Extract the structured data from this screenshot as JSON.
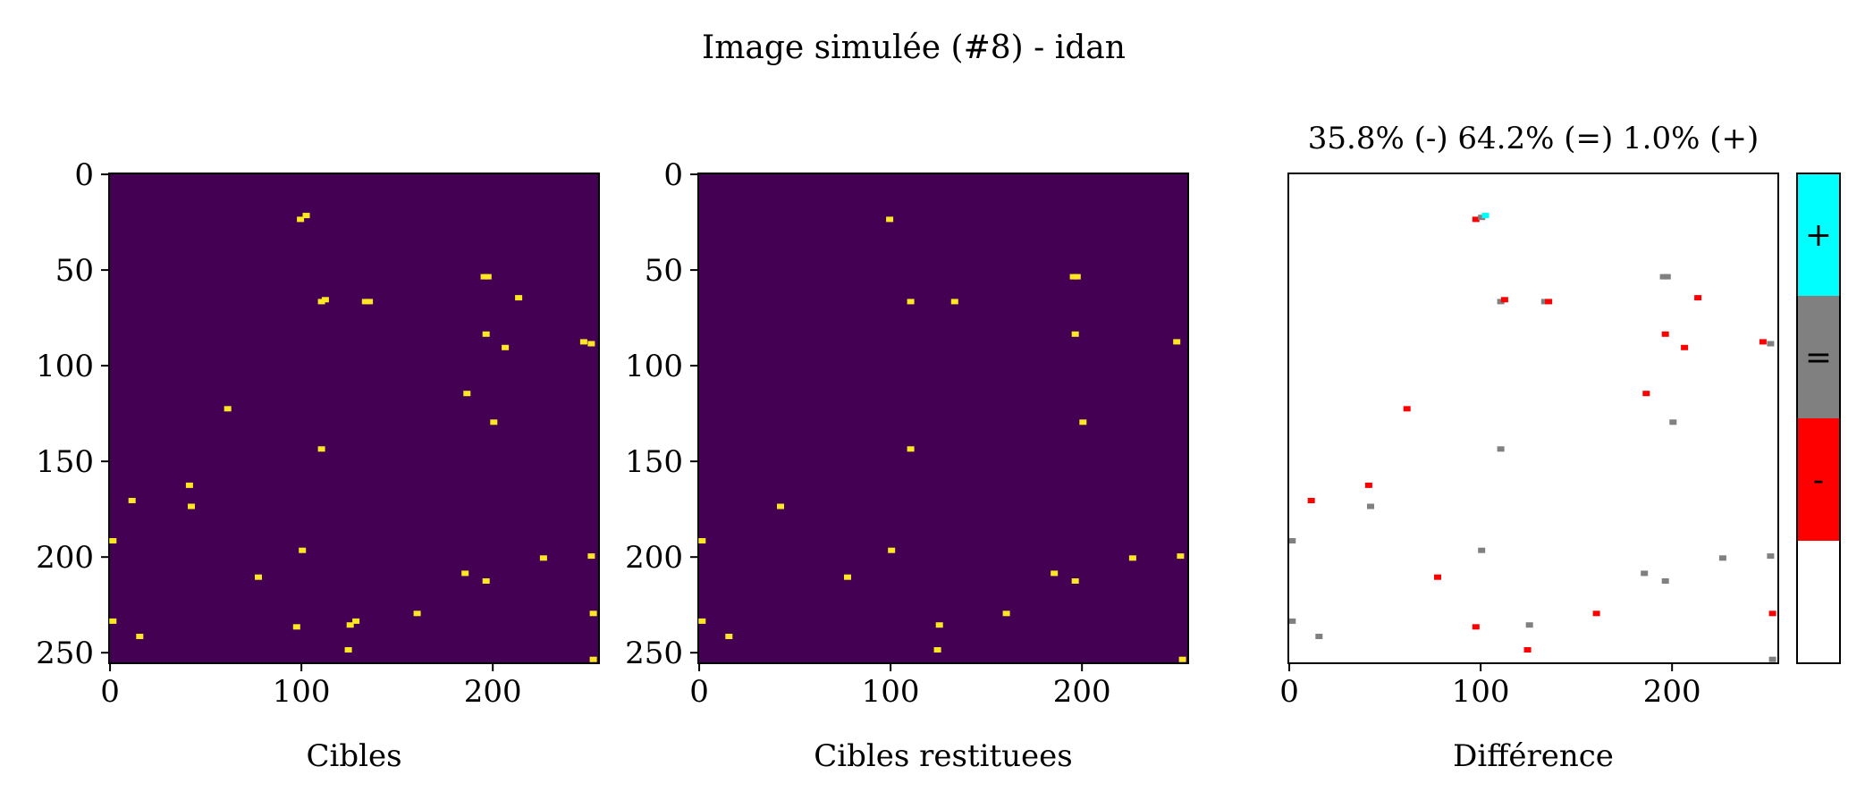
{
  "figure": {
    "title": "Image simulée (#8) - idan"
  },
  "colors": {
    "background": "#440154",
    "target": "#fde725",
    "plus": "#00ffff",
    "equal": "#808080",
    "minus": "#ff0000",
    "none": "#ffffff"
  },
  "chart_data": [
    {
      "type": "heatmap",
      "name": "cibles",
      "xlabel": "Cibles",
      "xlim": [
        0,
        255
      ],
      "ylim": [
        255,
        0
      ],
      "xticks": [
        0,
        100,
        200
      ],
      "yticks": [
        0,
        50,
        100,
        150,
        200,
        250
      ],
      "blobs": [
        [
          100,
          24
        ],
        [
          103,
          22
        ],
        [
          196,
          54
        ],
        [
          198,
          54
        ],
        [
          214,
          65
        ],
        [
          111,
          67
        ],
        [
          113,
          66
        ],
        [
          134,
          67
        ],
        [
          136,
          67
        ],
        [
          197,
          84
        ],
        [
          207,
          91
        ],
        [
          248,
          88
        ],
        [
          252,
          89
        ],
        [
          62,
          123
        ],
        [
          187,
          115
        ],
        [
          201,
          130
        ],
        [
          111,
          144
        ],
        [
          42,
          163
        ],
        [
          12,
          171
        ],
        [
          43,
          174
        ],
        [
          2,
          192
        ],
        [
          101,
          197
        ],
        [
          78,
          211
        ],
        [
          186,
          209
        ],
        [
          197,
          213
        ],
        [
          227,
          201
        ],
        [
          252,
          200
        ],
        [
          253,
          230
        ],
        [
          2,
          234
        ],
        [
          16,
          242
        ],
        [
          98,
          237
        ],
        [
          126,
          236
        ],
        [
          129,
          234
        ],
        [
          125,
          249
        ],
        [
          161,
          230
        ],
        [
          253,
          254
        ]
      ]
    },
    {
      "type": "heatmap",
      "name": "cibles-restituees",
      "xlabel": "Cibles restituees",
      "xlim": [
        0,
        255
      ],
      "ylim": [
        255,
        0
      ],
      "xticks": [
        0,
        100,
        200
      ],
      "yticks": [
        0,
        50,
        100,
        150,
        200,
        250
      ],
      "blobs": [
        [
          100,
          24
        ],
        [
          196,
          54
        ],
        [
          198,
          54
        ],
        [
          111,
          67
        ],
        [
          134,
          67
        ],
        [
          197,
          84
        ],
        [
          250,
          88
        ],
        [
          201,
          130
        ],
        [
          111,
          144
        ],
        [
          43,
          174
        ],
        [
          2,
          192
        ],
        [
          101,
          197
        ],
        [
          78,
          211
        ],
        [
          186,
          209
        ],
        [
          197,
          213
        ],
        [
          227,
          201
        ],
        [
          252,
          200
        ],
        [
          2,
          234
        ],
        [
          16,
          242
        ],
        [
          126,
          236
        ],
        [
          125,
          249
        ],
        [
          161,
          230
        ],
        [
          253,
          254
        ]
      ]
    },
    {
      "type": "heatmap",
      "name": "difference",
      "title": "35.8% (-) 64.2% (=) 1.0% (+)",
      "xlabel": "Différence",
      "xlim": [
        0,
        255
      ],
      "ylim": [
        255,
        0
      ],
      "xticks": [
        0,
        100,
        200
      ],
      "yticks": [],
      "blobs": [
        {
          "x": 98,
          "y": 24,
          "c": "minus"
        },
        {
          "x": 101,
          "y": 23,
          "c": "equal"
        },
        {
          "x": 103,
          "y": 22,
          "c": "plus"
        },
        {
          "x": 196,
          "y": 54,
          "c": "equal"
        },
        {
          "x": 198,
          "y": 54,
          "c": "equal"
        },
        {
          "x": 214,
          "y": 65,
          "c": "minus"
        },
        {
          "x": 111,
          "y": 67,
          "c": "equal"
        },
        {
          "x": 113,
          "y": 66,
          "c": "minus"
        },
        {
          "x": 134,
          "y": 67,
          "c": "equal"
        },
        {
          "x": 136,
          "y": 67,
          "c": "minus"
        },
        {
          "x": 197,
          "y": 84,
          "c": "minus"
        },
        {
          "x": 207,
          "y": 91,
          "c": "minus"
        },
        {
          "x": 248,
          "y": 88,
          "c": "minus"
        },
        {
          "x": 252,
          "y": 89,
          "c": "equal"
        },
        {
          "x": 62,
          "y": 123,
          "c": "minus"
        },
        {
          "x": 187,
          "y": 115,
          "c": "minus"
        },
        {
          "x": 201,
          "y": 130,
          "c": "equal"
        },
        {
          "x": 111,
          "y": 144,
          "c": "equal"
        },
        {
          "x": 42,
          "y": 163,
          "c": "minus"
        },
        {
          "x": 12,
          "y": 171,
          "c": "minus"
        },
        {
          "x": 43,
          "y": 174,
          "c": "equal"
        },
        {
          "x": 2,
          "y": 192,
          "c": "equal"
        },
        {
          "x": 101,
          "y": 197,
          "c": "equal"
        },
        {
          "x": 78,
          "y": 211,
          "c": "minus"
        },
        {
          "x": 186,
          "y": 209,
          "c": "equal"
        },
        {
          "x": 197,
          "y": 213,
          "c": "equal"
        },
        {
          "x": 227,
          "y": 201,
          "c": "equal"
        },
        {
          "x": 252,
          "y": 200,
          "c": "equal"
        },
        {
          "x": 253,
          "y": 230,
          "c": "minus"
        },
        {
          "x": 2,
          "y": 234,
          "c": "equal"
        },
        {
          "x": 16,
          "y": 242,
          "c": "equal"
        },
        {
          "x": 98,
          "y": 237,
          "c": "minus"
        },
        {
          "x": 126,
          "y": 236,
          "c": "equal"
        },
        {
          "x": 125,
          "y": 249,
          "c": "minus"
        },
        {
          "x": 161,
          "y": 230,
          "c": "minus"
        },
        {
          "x": 253,
          "y": 254,
          "c": "equal"
        }
      ]
    }
  ],
  "colorbar": {
    "labels": [
      "+",
      "=",
      "-"
    ]
  }
}
